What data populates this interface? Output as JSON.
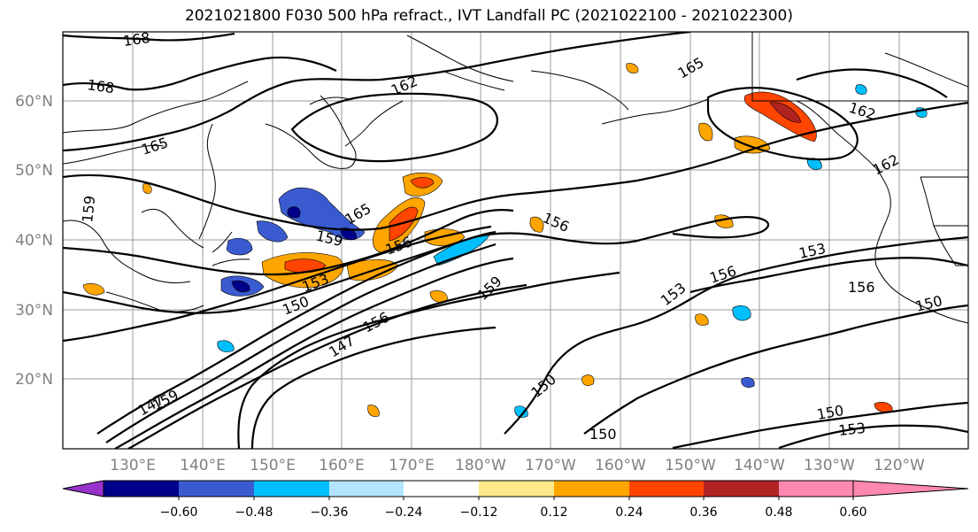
{
  "title": "2021021800 F030 500 hPa refract., IVT Landfall PC (2021022100 - 2021022300)",
  "lat_labels": [
    "60°N",
    "50°N",
    "40°N",
    "30°N",
    "20°N"
  ],
  "lon_labels": [
    "130°E",
    "140°E",
    "150°E",
    "160°E",
    "170°E",
    "180°W",
    "170°W",
    "160°W",
    "150°W",
    "140°W",
    "130°W",
    "120°W"
  ],
  "contour_labels": [
    "168",
    "168",
    "165",
    "162",
    "165",
    "162",
    "162",
    "159",
    "165",
    "159",
    "156",
    "156",
    "153",
    "159",
    "150",
    "156",
    "147",
    "147",
    "159",
    "150",
    "150",
    "153",
    "156",
    "153",
    "156",
    "150",
    "150",
    "153"
  ],
  "colorbar": {
    "ticks": [
      "−0.60",
      "−0.48",
      "−0.36",
      "−0.24",
      "−0.12",
      "0.12",
      "0.24",
      "0.36",
      "0.48",
      "0.60"
    ],
    "colors": [
      "#9932cc",
      "#00008b",
      "#3a5bd0",
      "#00bfff",
      "#b3e5ff",
      "#ffffff",
      "#ffe98a",
      "#ffa500",
      "#ff4500",
      "#b22222",
      "#ff88b0"
    ]
  }
}
